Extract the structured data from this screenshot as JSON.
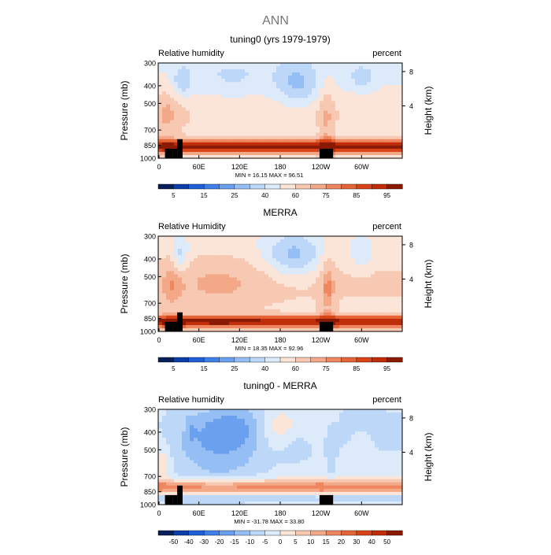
{
  "figure": {
    "title": "ANN"
  },
  "chart_data": [
    {
      "type": "heatmap",
      "title": "tuning0 (yrs 1979-1979)",
      "left_label": "Relative humidity",
      "right_label": "percent",
      "ylabel": "Pressure  (mb)",
      "ylabel_right": "Height  (km)",
      "y_ticks": [
        "300",
        "400",
        "500",
        "700",
        "850",
        "1000"
      ],
      "y_ticks_right": [
        "8",
        "4"
      ],
      "x_ticks": [
        "0",
        "60E",
        "120E",
        "180",
        "120W",
        "60W"
      ],
      "stats": "MIN =   16.15   MAX =   96.51",
      "colorbar_ticks": [
        "5",
        "15",
        "25",
        "40",
        "60",
        "75",
        "85",
        "95"
      ],
      "colorbar_colors": [
        "#08205a",
        "#0a3ea8",
        "#1f60d8",
        "#3f80e8",
        "#6aa0ee",
        "#95bff4",
        "#bcd7f8",
        "#dceafa",
        "#fbe4d8",
        "#f7c8b2",
        "#f3a888",
        "#ee8660",
        "#e56438",
        "#d84418",
        "#bf2e08",
        "#8a1a04"
      ],
      "field": "model"
    },
    {
      "type": "heatmap",
      "title": "MERRA",
      "left_label": "Relative Humidity",
      "right_label": "percent",
      "ylabel": "Pressure  (mb)",
      "ylabel_right": "Height  (km)",
      "y_ticks": [
        "300",
        "400",
        "500",
        "700",
        "850",
        "1000"
      ],
      "y_ticks_right": [
        "8",
        "4"
      ],
      "x_ticks": [
        "0",
        "60E",
        "120E",
        "180",
        "120W",
        "60W"
      ],
      "stats": "MIN =   18.35   MAX =   92.96",
      "colorbar_ticks": [
        "5",
        "15",
        "25",
        "40",
        "60",
        "75",
        "85",
        "95"
      ],
      "colorbar_colors": [
        "#08205a",
        "#0a3ea8",
        "#1f60d8",
        "#3f80e8",
        "#6aa0ee",
        "#95bff4",
        "#bcd7f8",
        "#dceafa",
        "#fbe4d8",
        "#f7c8b2",
        "#f3a888",
        "#ee8660",
        "#e56438",
        "#d84418",
        "#bf2e08",
        "#8a1a04"
      ],
      "field": "obs"
    },
    {
      "type": "heatmap",
      "title": "tuning0 - MERRA",
      "left_label": "Relative humidity",
      "right_label": "percent",
      "ylabel": "Pressure  (mb)",
      "ylabel_right": "Height  (km)",
      "y_ticks": [
        "300",
        "400",
        "500",
        "700",
        "850",
        "1000"
      ],
      "y_ticks_right": [
        "8",
        "4"
      ],
      "x_ticks": [
        "0",
        "60E",
        "120E",
        "180",
        "120W",
        "60W"
      ],
      "stats": "MIN =  -31.78   MAX =   33.80",
      "colorbar_ticks": [
        "-50",
        "-40",
        "-30",
        "-20",
        "-15",
        "-10",
        "-5",
        "0",
        "5",
        "10",
        "15",
        "20",
        "30",
        "40",
        "50"
      ],
      "colorbar_colors": [
        "#08205a",
        "#0a3ea8",
        "#1f60d8",
        "#3f80e8",
        "#6aa0ee",
        "#95bff4",
        "#bcd7f8",
        "#dceafa",
        "#fbe4d8",
        "#f7c8b2",
        "#f3a888",
        "#ee8660",
        "#e56438",
        "#d84418",
        "#bf2e08",
        "#8a1a04"
      ],
      "field": "diff"
    }
  ]
}
